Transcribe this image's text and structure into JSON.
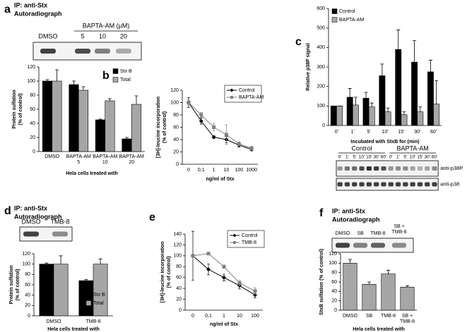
{
  "chart_data": [
    {
      "type": "bar",
      "panel": "a",
      "notes": [
        "IP: anti-Stx",
        "Autoradiograph"
      ],
      "gel_labels": [
        "DMSO",
        "BAPTA-AM (μM)",
        "5",
        "10",
        "20"
      ],
      "categories": [
        "DMSO",
        "BAPTA-AM\n5",
        "BAPTA-AM\n10",
        "BAPTA-AM\n20"
      ],
      "series": [
        {
          "name": "Stx B",
          "color": "#000000",
          "values": [
            100,
            95,
            45,
            18
          ],
          "errors": [
            2,
            5,
            1,
            2
          ]
        },
        {
          "name": "Total",
          "color": "#a6a6a6",
          "values": [
            100,
            87,
            72,
            67
          ],
          "errors": [
            16,
            5,
            3,
            12
          ]
        }
      ],
      "ylabel": [
        "Protein sulfation",
        "(% of control)"
      ],
      "xlabel": "Hela cells treated with",
      "ylim": [
        0,
        120
      ],
      "yticks": [
        0,
        20,
        40,
        60,
        80,
        100,
        120
      ]
    },
    {
      "type": "line",
      "panel": "b",
      "categories": [
        "0",
        "0,1",
        "1",
        "10",
        "100",
        "1000"
      ],
      "series": [
        {
          "name": "Control",
          "color": "#000000",
          "marker": "diamond",
          "values": [
            100,
            70,
            44,
            40,
            31,
            24
          ],
          "errors": [
            8,
            5,
            2,
            5,
            3,
            2
          ]
        },
        {
          "name": "BAPTA-AM",
          "color": "#808080",
          "marker": "square",
          "values": [
            100,
            80,
            60,
            48,
            33,
            26
          ],
          "errors": [
            4,
            4,
            6,
            16,
            3,
            3
          ]
        }
      ],
      "ylabel": [
        "[3H]-leucine incorporation",
        "(% of control)"
      ],
      "xlabel": "ng/ml of Stx",
      "ylim": [
        0,
        120
      ],
      "yticks": [
        0,
        20,
        40,
        60,
        80,
        100,
        120
      ]
    },
    {
      "type": "bar",
      "panel": "c",
      "categories": [
        "0'",
        "1'",
        "5'",
        "10'",
        "15'",
        "30'",
        "60'"
      ],
      "series": [
        {
          "name": "Control",
          "color": "#000000",
          "values": [
            100,
            145,
            140,
            255,
            390,
            325,
            275
          ],
          "errors": [
            0,
            45,
            30,
            60,
            100,
            110,
            60
          ]
        },
        {
          "name": "BAPTA-AM",
          "color": "#a6a6a6",
          "values": [
            100,
            105,
            95,
            70,
            55,
            70,
            110
          ],
          "errors": [
            0,
            40,
            20,
            20,
            15,
            25,
            120
          ]
        }
      ],
      "ylabel": [
        "Relative p38P signal"
      ],
      "xlabel": "Incubated with StxB for (min)",
      "ylim": [
        0,
        600
      ],
      "yticks": [
        0,
        100,
        200,
        300,
        400,
        500,
        600
      ],
      "blot_groups": [
        "Control",
        "BAPTA-AM"
      ],
      "blot_lanes": [
        "0'",
        "1'",
        "5'",
        "10'",
        "15'",
        "30'",
        "60'",
        "0'",
        "1'",
        "5'",
        "10'",
        "15'",
        "30'",
        "60'"
      ],
      "blot_rows": [
        "anti-p38P",
        "anti-p38"
      ]
    },
    {
      "type": "bar",
      "panel": "d",
      "notes": [
        "IP: anti-Stx",
        "Autoradiograph"
      ],
      "gel_labels": [
        "DMSO",
        "TMB-8"
      ],
      "categories": [
        "DMSO",
        "TMB-8"
      ],
      "series": [
        {
          "name": "Stx B",
          "color": "#000000",
          "values": [
            100,
            68
          ],
          "errors": [
            2,
            2
          ]
        },
        {
          "name": "Total",
          "color": "#a6a6a6",
          "values": [
            100,
            100
          ],
          "errors": [
            16,
            10
          ]
        }
      ],
      "ylabel": [
        "Protein sulfation",
        "(% of control)"
      ],
      "xlabel": "Hela cells treated with",
      "ylim": [
        0,
        120
      ],
      "yticks": [
        0,
        20,
        40,
        60,
        80,
        100,
        120
      ]
    },
    {
      "type": "line",
      "panel": "e",
      "categories": [
        "0",
        "0,1",
        "1",
        "10",
        "100"
      ],
      "series": [
        {
          "name": "Control",
          "color": "#000000",
          "marker": "diamond",
          "values": [
            100,
            75,
            60,
            45,
            28
          ],
          "errors": [
            45,
            10,
            6,
            6,
            5
          ]
        },
        {
          "name": "TMB-8",
          "color": "#808080",
          "marker": "square",
          "values": [
            100,
            104,
            80,
            50,
            35
          ],
          "errors": [
            0,
            0,
            3,
            5,
            6
          ]
        }
      ],
      "ylabel": [
        "[3H]-leucine incorporation",
        "(% of control)"
      ],
      "xlabel": "ng/ml of Stx",
      "ylim": [
        0,
        140
      ],
      "yticks": [
        0,
        20,
        40,
        60,
        80,
        100,
        120,
        140
      ]
    },
    {
      "type": "bar",
      "panel": "f",
      "notes": [
        "IP: anti-Stx",
        "Autoradiograph"
      ],
      "gel_labels": [
        "DMSO",
        "SB",
        "TMB-8",
        "SB +\nTMB-8"
      ],
      "categories": [
        "DMSO",
        "SB",
        "TMB-8",
        "SB +\nTMB-8"
      ],
      "series": [
        {
          "color": "#a6a6a6",
          "values": [
            100,
            55,
            77,
            49
          ],
          "errors": [
            8,
            5,
            8,
            3
          ]
        }
      ],
      "ylabel": [
        "StxB sulfation (% of control)"
      ],
      "xlabel": "Hela cells treated with",
      "ylim": [
        0,
        120
      ],
      "yticks": [
        0,
        20,
        40,
        60,
        80,
        100,
        120
      ]
    }
  ]
}
